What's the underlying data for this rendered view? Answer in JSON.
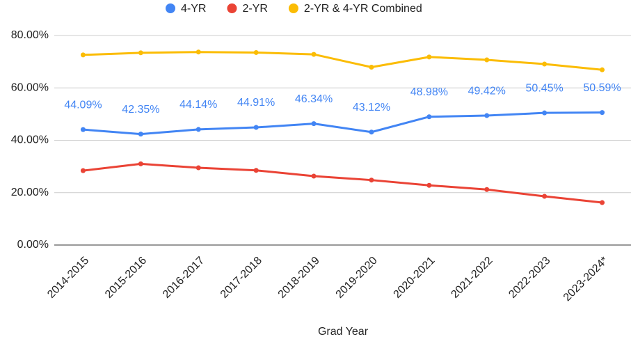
{
  "chart_data": {
    "type": "line",
    "xlabel": "Grad Year",
    "categories": [
      "2014-2015",
      "2015-2016",
      "2016-2017",
      "2017-2018",
      "2018-2019",
      "2019-2020",
      "2020-2021",
      "2021-2022",
      "2022-2023",
      "2023-2024*"
    ],
    "series": [
      {
        "name": "4-YR",
        "color": "#4285f4",
        "values": [
          44.09,
          42.35,
          44.14,
          44.91,
          46.34,
          43.12,
          48.98,
          49.42,
          50.45,
          50.59
        ],
        "value_labels": [
          "44.09%",
          "42.35%",
          "44.14%",
          "44.91%",
          "46.34%",
          "43.12%",
          "48.98%",
          "49.42%",
          "50.45%",
          "50.59%"
        ]
      },
      {
        "name": "2-YR",
        "color": "#ea4335",
        "values": [
          28.4,
          31.0,
          29.5,
          28.5,
          26.3,
          24.8,
          22.8,
          21.2,
          18.6,
          16.2
        ]
      },
      {
        "name": "2-YR & 4-YR Combined",
        "color": "#fbbc04",
        "values": [
          72.6,
          73.4,
          73.7,
          73.5,
          72.8,
          67.9,
          71.8,
          70.7,
          69.1,
          66.9
        ]
      }
    ],
    "ylim": [
      0,
      80
    ],
    "yticks": [
      {
        "value": 0,
        "label": "0.00%"
      },
      {
        "value": 20,
        "label": "20.00%"
      },
      {
        "value": 40,
        "label": "40.00%"
      },
      {
        "value": 60,
        "label": "60.00%"
      },
      {
        "value": 80,
        "label": "80.00%"
      }
    ],
    "grid": true,
    "legend": "top"
  }
}
